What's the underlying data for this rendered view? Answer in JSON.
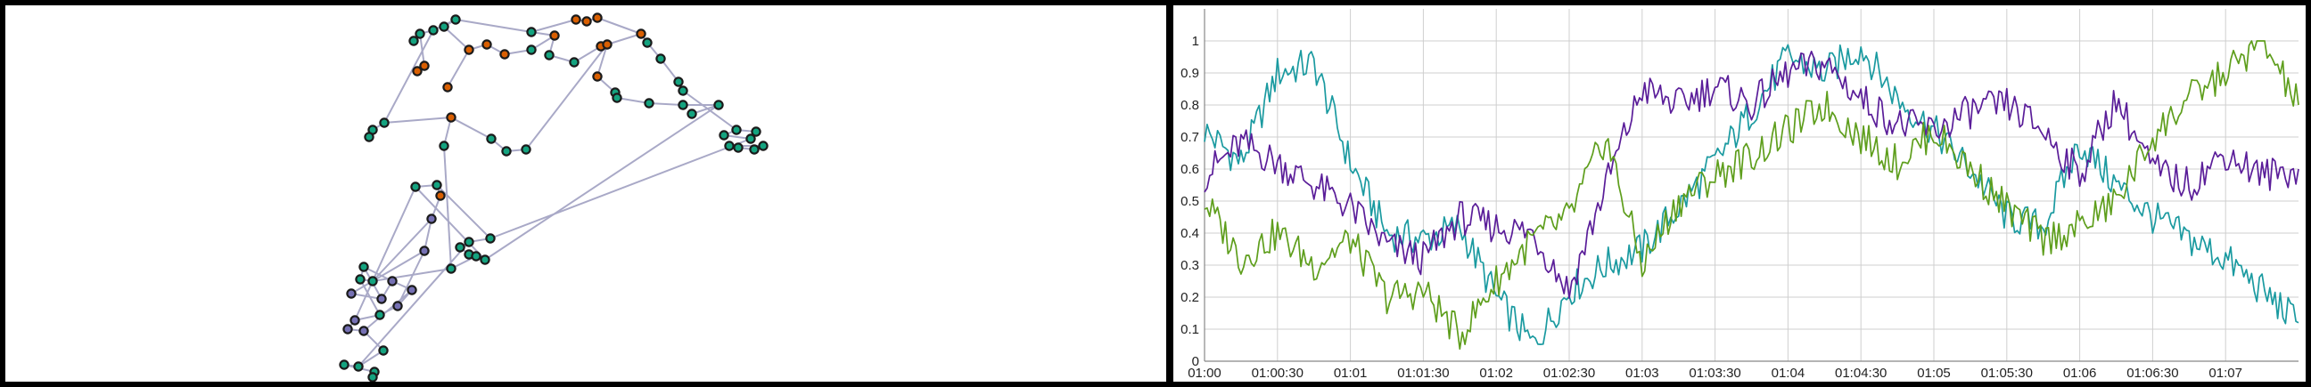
{
  "colors": {
    "background_frame": "#000000",
    "panel": "#ffffff",
    "node_green": "#14a37f",
    "node_orange": "#d95f02",
    "node_purple": "#7570b3",
    "edge": "#a9a9c7"
  },
  "network": {
    "type": "node-link-graph",
    "groups": [
      "green",
      "orange",
      "purple"
    ],
    "node_count": 66
  },
  "chart_data": {
    "type": "line",
    "title": "",
    "xlabel": "",
    "ylabel": "",
    "x_range": [
      "01:00",
      "01:07:30"
    ],
    "ylim": [
      0,
      1.1
    ],
    "grid": true,
    "legend": "none",
    "x_ticks": [
      "01:00",
      "01:00:30",
      "01:01",
      "01:01:30",
      "01:02",
      "01:02:30",
      "01:03",
      "01:03:30",
      "01:04",
      "01:04:30",
      "01:05",
      "01:05:30",
      "01:06",
      "01:06:30",
      "01:07"
    ],
    "y_ticks": [
      "0",
      "0.1",
      "0.2",
      "0.3",
      "0.4",
      "0.5",
      "0.6",
      "0.7",
      "0.8",
      "0.9",
      "1"
    ],
    "series": [
      {
        "color": "#1a9aa0",
        "x": [
          "01:00:00",
          "01:00:15",
          "01:00:30",
          "01:00:45",
          "01:01:00",
          "01:01:15",
          "01:01:30",
          "01:01:45",
          "01:02:00",
          "01:02:15",
          "01:02:30",
          "01:02:45",
          "01:03:00",
          "01:03:15",
          "01:03:30",
          "01:03:45",
          "01:04:00",
          "01:04:15",
          "01:04:30",
          "01:04:45",
          "01:05:00",
          "01:05:15",
          "01:05:30",
          "01:05:45",
          "01:06:00",
          "01:06:15",
          "01:06:30",
          "01:06:45",
          "01:07:00",
          "01:07:15",
          "01:07:30"
        ],
        "values": [
          0.72,
          0.62,
          0.9,
          0.93,
          0.62,
          0.4,
          0.38,
          0.42,
          0.2,
          0.05,
          0.22,
          0.3,
          0.35,
          0.48,
          0.62,
          0.78,
          0.95,
          0.9,
          0.98,
          0.82,
          0.72,
          0.6,
          0.45,
          0.42,
          0.68,
          0.55,
          0.45,
          0.38,
          0.32,
          0.22,
          0.12
        ]
      },
      {
        "color": "#5a1d99",
        "x": [
          "01:00:00",
          "01:00:15",
          "01:00:30",
          "01:00:45",
          "01:01:00",
          "01:01:15",
          "01:01:30",
          "01:01:45",
          "01:02:00",
          "01:02:15",
          "01:02:30",
          "01:02:45",
          "01:03:00",
          "01:03:15",
          "01:03:30",
          "01:03:45",
          "01:04:00",
          "01:04:15",
          "01:04:30",
          "01:04:45",
          "01:05:00",
          "01:05:15",
          "01:05:30",
          "01:05:45",
          "01:06:00",
          "01:06:15",
          "01:06:30",
          "01:06:45",
          "01:07:00",
          "01:07:15",
          "01:07:30"
        ],
        "values": [
          0.58,
          0.68,
          0.62,
          0.55,
          0.48,
          0.36,
          0.32,
          0.45,
          0.42,
          0.4,
          0.22,
          0.55,
          0.85,
          0.8,
          0.86,
          0.8,
          0.9,
          0.93,
          0.82,
          0.74,
          0.72,
          0.78,
          0.8,
          0.72,
          0.58,
          0.82,
          0.6,
          0.55,
          0.65,
          0.58,
          0.6
        ]
      },
      {
        "color": "#5e9e1c",
        "x": [
          "01:00:00",
          "01:00:15",
          "01:00:30",
          "01:00:45",
          "01:01:00",
          "01:01:15",
          "01:01:30",
          "01:01:45",
          "01:02:00",
          "01:02:15",
          "01:02:30",
          "01:02:45",
          "01:03:00",
          "01:03:15",
          "01:03:30",
          "01:03:45",
          "01:04:00",
          "01:04:15",
          "01:04:30",
          "01:04:45",
          "01:05:00",
          "01:05:15",
          "01:05:30",
          "01:05:45",
          "01:06:00",
          "01:06:15",
          "01:06:30",
          "01:06:45",
          "01:07:00",
          "01:07:15",
          "01:07:30"
        ],
        "values": [
          0.5,
          0.32,
          0.4,
          0.3,
          0.38,
          0.2,
          0.22,
          0.08,
          0.25,
          0.38,
          0.45,
          0.7,
          0.3,
          0.5,
          0.58,
          0.64,
          0.72,
          0.8,
          0.7,
          0.62,
          0.72,
          0.6,
          0.48,
          0.38,
          0.42,
          0.5,
          0.7,
          0.82,
          0.9,
          1.0,
          0.8
        ]
      }
    ]
  }
}
